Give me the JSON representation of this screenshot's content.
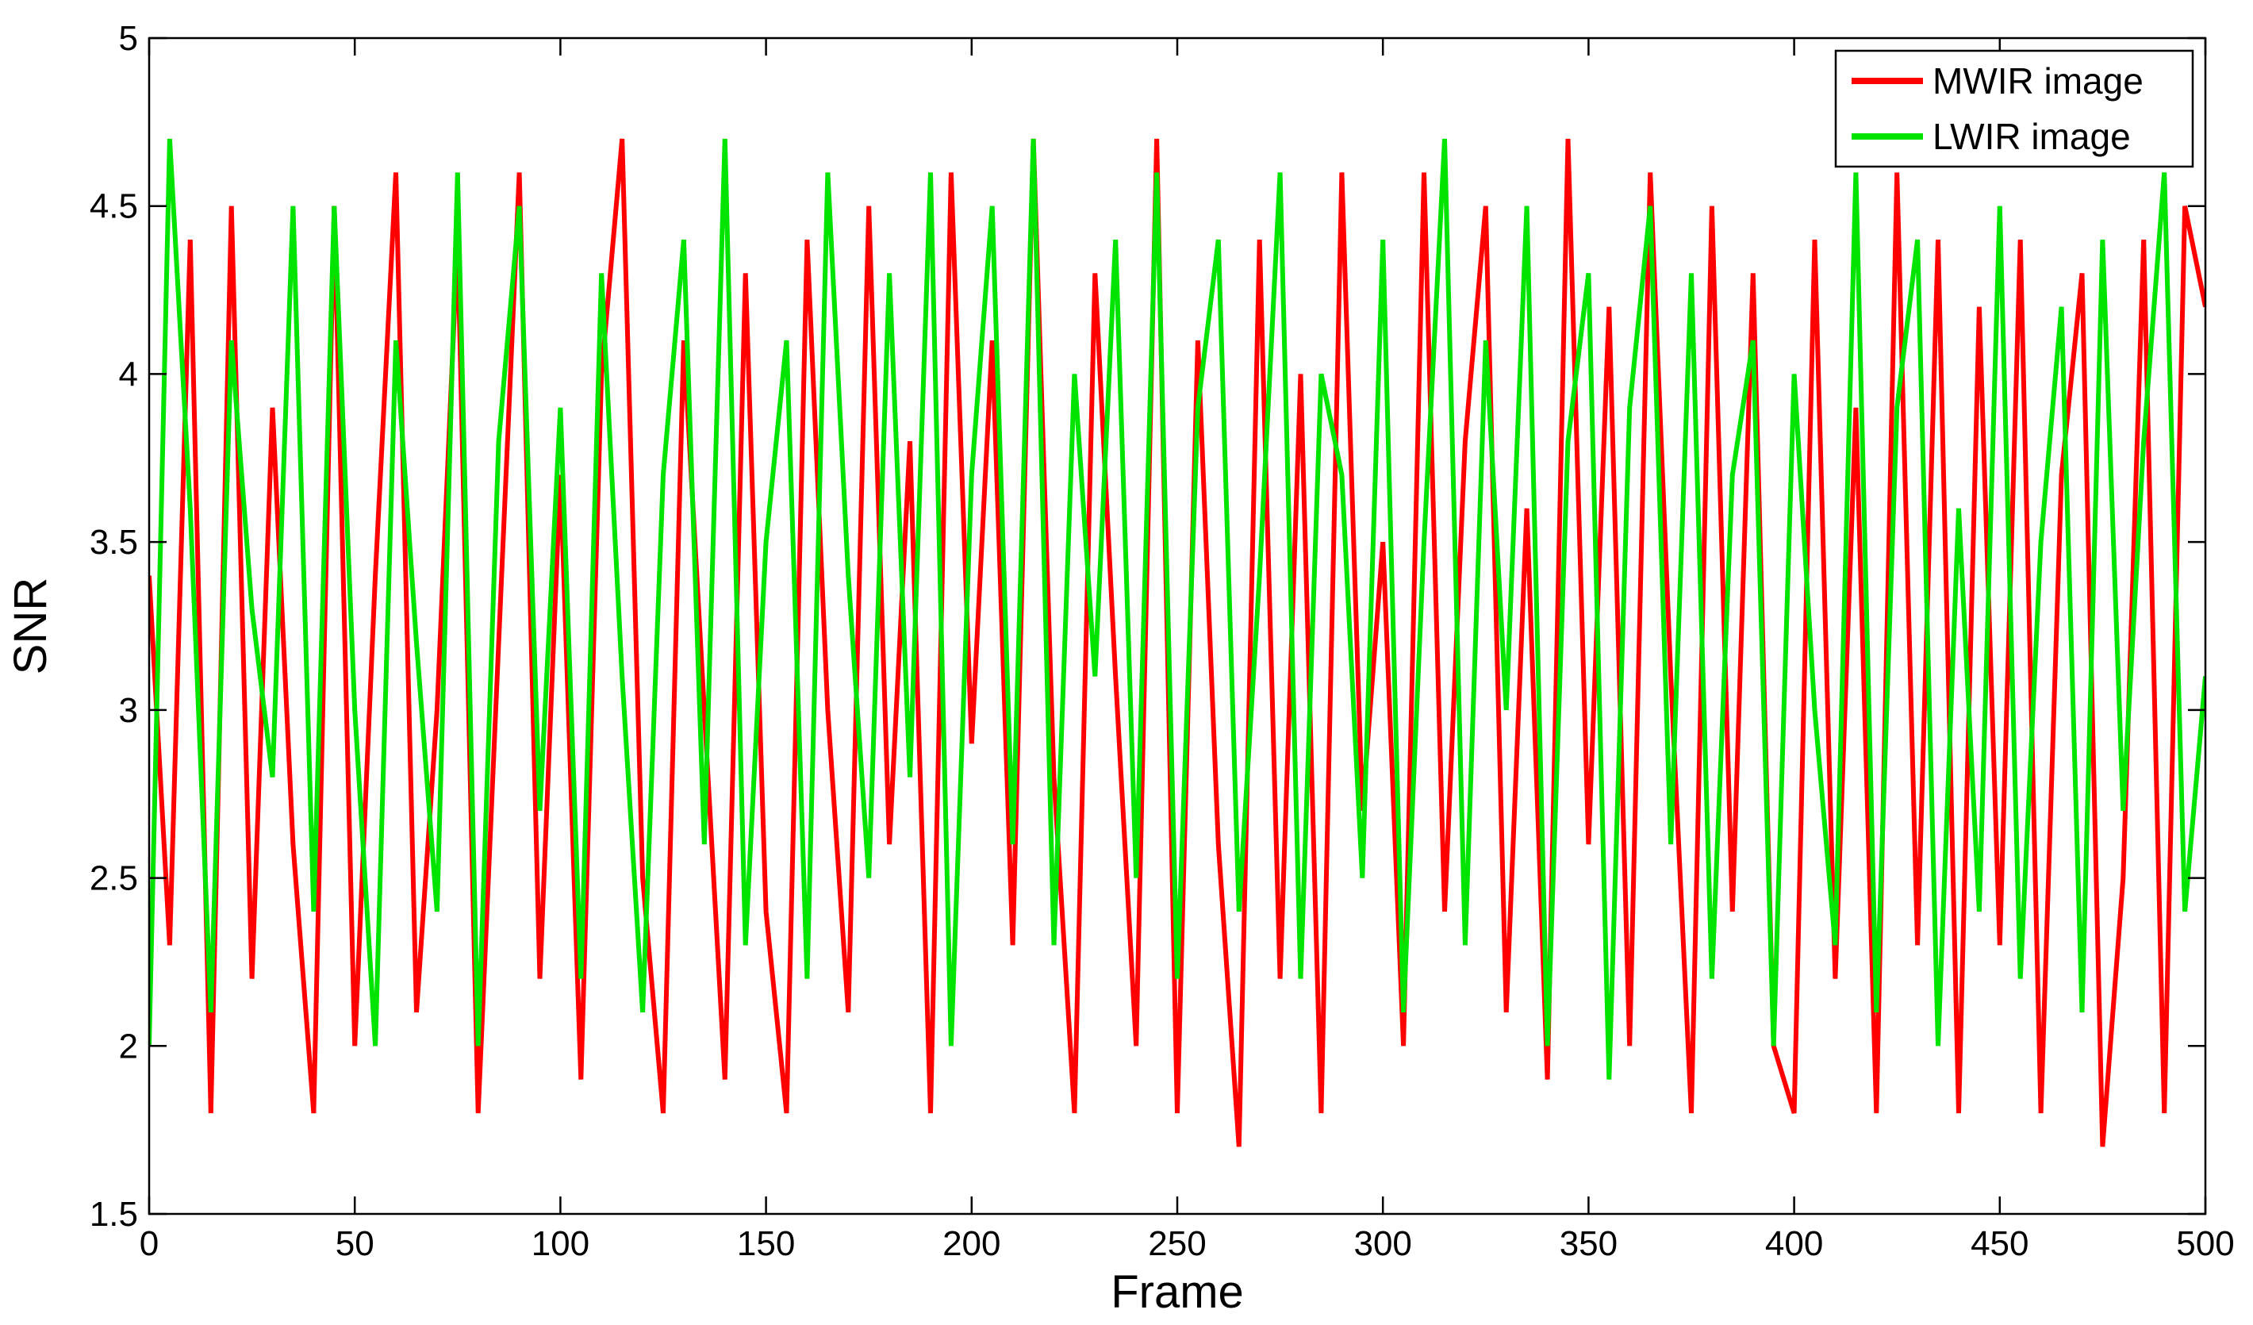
{
  "chart_data": {
    "type": "line",
    "title": "",
    "xlabel": "Frame",
    "ylabel": "SNR",
    "xlim": [
      0,
      500
    ],
    "ylim": [
      1.5,
      5
    ],
    "xticks": [
      0,
      50,
      100,
      150,
      200,
      250,
      300,
      350,
      400,
      450,
      500
    ],
    "yticks": [
      1.5,
      2,
      2.5,
      3,
      3.5,
      4,
      4.5,
      5
    ],
    "xtick_labels": [
      "0",
      "50",
      "100",
      "150",
      "200",
      "250",
      "300",
      "350",
      "400",
      "450",
      "500"
    ],
    "ytick_labels": [
      "1.5",
      "2",
      "2.5",
      "3",
      "3.5",
      "4",
      "4.5",
      "5"
    ],
    "grid": false,
    "legend_position": "top-right",
    "series": [
      {
        "name": "MWIR image",
        "color": "#ff0000",
        "x": [
          0,
          5,
          10,
          15,
          20,
          25,
          30,
          35,
          40,
          45,
          50,
          55,
          60,
          65,
          70,
          75,
          80,
          85,
          90,
          95,
          100,
          105,
          110,
          115,
          120,
          125,
          130,
          135,
          140,
          145,
          150,
          155,
          160,
          165,
          170,
          175,
          180,
          185,
          190,
          195,
          200,
          205,
          210,
          215,
          220,
          225,
          230,
          235,
          240,
          245,
          250,
          255,
          260,
          265,
          270,
          275,
          280,
          285,
          290,
          295,
          300,
          305,
          310,
          315,
          320,
          325,
          330,
          335,
          340,
          345,
          350,
          355,
          360,
          365,
          370,
          375,
          380,
          385,
          390,
          395,
          400,
          405,
          410,
          415,
          420,
          425,
          430,
          435,
          440,
          445,
          450,
          455,
          460,
          465,
          470,
          475,
          480,
          485,
          490,
          495,
          500
        ],
        "values": [
          3.4,
          2.3,
          4.4,
          1.8,
          4.5,
          2.2,
          3.9,
          2.6,
          1.8,
          4.5,
          2.0,
          3.4,
          4.6,
          2.1,
          3.0,
          4.4,
          1.8,
          3.2,
          4.6,
          2.2,
          3.7,
          1.9,
          4.0,
          4.7,
          2.5,
          1.8,
          4.1,
          3.0,
          1.9,
          4.3,
          2.4,
          1.8,
          4.4,
          3.0,
          2.1,
          4.5,
          2.6,
          3.8,
          1.8,
          4.6,
          2.9,
          4.1,
          2.3,
          4.7,
          2.8,
          1.8,
          4.3,
          3.1,
          2.0,
          4.7,
          1.8,
          4.1,
          2.6,
          1.7,
          4.4,
          2.2,
          4.0,
          1.8,
          4.6,
          2.7,
          3.5,
          2.0,
          4.6,
          2.4,
          3.8,
          4.5,
          2.1,
          3.6,
          1.9,
          4.7,
          2.6,
          4.2,
          2.0,
          4.6,
          3.1,
          1.8,
          4.5,
          2.4,
          4.3,
          2.0,
          1.8,
          4.4,
          2.2,
          3.9,
          1.8,
          4.6,
          2.3,
          4.4,
          1.8,
          4.2,
          2.3,
          4.4,
          1.8,
          3.7,
          4.3,
          1.7,
          2.5,
          4.4,
          1.8,
          4.5,
          4.2
        ]
      },
      {
        "name": "LWIR image",
        "color": "#00e400",
        "x": [
          0,
          5,
          10,
          15,
          20,
          25,
          30,
          35,
          40,
          45,
          50,
          55,
          60,
          65,
          70,
          75,
          80,
          85,
          90,
          95,
          100,
          105,
          110,
          115,
          120,
          125,
          130,
          135,
          140,
          145,
          150,
          155,
          160,
          165,
          170,
          175,
          180,
          185,
          190,
          195,
          200,
          205,
          210,
          215,
          220,
          225,
          230,
          235,
          240,
          245,
          250,
          255,
          260,
          265,
          270,
          275,
          280,
          285,
          290,
          295,
          300,
          305,
          310,
          315,
          320,
          325,
          330,
          335,
          340,
          345,
          350,
          355,
          360,
          365,
          370,
          375,
          380,
          385,
          390,
          395,
          400,
          405,
          410,
          415,
          420,
          425,
          430,
          435,
          440,
          445,
          450,
          455,
          460,
          465,
          470,
          475,
          480,
          485,
          490,
          495,
          500
        ],
        "values": [
          2.0,
          4.7,
          3.6,
          2.1,
          4.1,
          3.3,
          2.8,
          4.5,
          2.4,
          4.5,
          3.0,
          2.0,
          4.1,
          3.2,
          2.4,
          4.6,
          2.0,
          3.8,
          4.5,
          2.7,
          3.9,
          2.2,
          4.3,
          3.1,
          2.1,
          3.7,
          4.4,
          2.6,
          4.7,
          2.3,
          3.5,
          4.1,
          2.2,
          4.6,
          3.4,
          2.5,
          4.3,
          2.8,
          4.6,
          2.0,
          3.7,
          4.5,
          2.6,
          4.7,
          2.3,
          4.0,
          3.1,
          4.4,
          2.5,
          4.6,
          2.2,
          3.9,
          4.4,
          2.4,
          3.4,
          4.6,
          2.2,
          4.0,
          3.7,
          2.5,
          4.4,
          2.1,
          3.5,
          4.7,
          2.3,
          4.1,
          3.0,
          4.5,
          2.0,
          3.8,
          4.3,
          1.9,
          3.9,
          4.5,
          2.6,
          4.3,
          2.2,
          3.7,
          4.1,
          2.0,
          4.0,
          3.0,
          2.3,
          4.6,
          2.1,
          3.9,
          4.4,
          2.0,
          3.6,
          2.4,
          4.5,
          2.2,
          3.5,
          4.2,
          2.1,
          4.4,
          2.7,
          3.8,
          4.6,
          2.4,
          3.1
        ]
      }
    ]
  }
}
